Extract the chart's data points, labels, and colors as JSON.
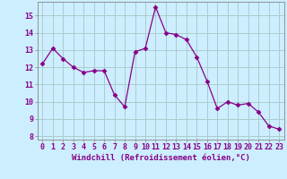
{
  "x": [
    0,
    1,
    2,
    3,
    4,
    5,
    6,
    7,
    8,
    9,
    10,
    11,
    12,
    13,
    14,
    15,
    16,
    17,
    18,
    19,
    20,
    21,
    22,
    23
  ],
  "y": [
    12.2,
    13.1,
    12.5,
    12.0,
    11.7,
    11.8,
    11.8,
    10.4,
    9.7,
    12.9,
    13.1,
    15.5,
    14.0,
    13.9,
    13.6,
    12.6,
    11.2,
    9.6,
    10.0,
    9.8,
    9.9,
    9.4,
    8.6,
    8.4
  ],
  "line_color": "#880088",
  "marker": "D",
  "marker_size": 2.5,
  "bg_color": "#cceeff",
  "grid_color": "#aacccc",
  "xlabel": "Windchill (Refroidissement éolien,°C)",
  "xlabel_fontsize": 6.5,
  "ylabel_ticks": [
    8,
    9,
    10,
    11,
    12,
    13,
    14,
    15
  ],
  "xlim": [
    -0.5,
    23.5
  ],
  "ylim": [
    7.8,
    15.8
  ],
  "tick_fontsize": 6.0
}
